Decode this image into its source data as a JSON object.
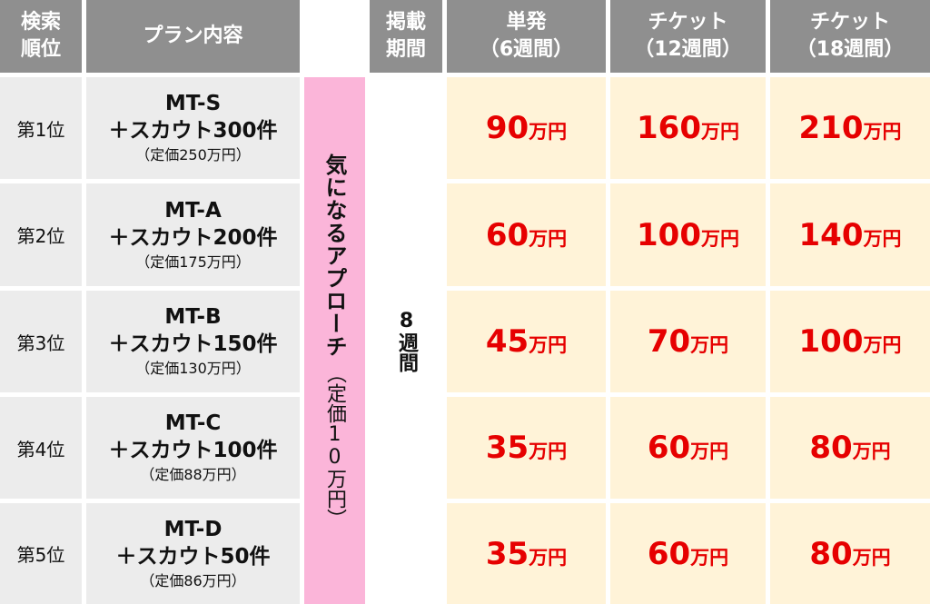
{
  "header": [
    [
      "検索",
      "順位"
    ],
    [
      "プラン内容"
    ],
    [
      "掲載",
      "期間"
    ],
    [
      "単発",
      "（6週間）"
    ],
    [
      "チケット",
      "（12週間）"
    ],
    [
      "チケット",
      "（18週間）"
    ]
  ],
  "approach": {
    "name": "気になるアプローチ",
    "price": "（定価10万円）"
  },
  "period": "8週間",
  "rows": [
    {
      "rank": "第1位",
      "plan": "MT-S",
      "scout": "＋スカウト300件",
      "list_price": "（定価250万円）",
      "prices": [
        {
          "amount": "90",
          "unit": "万円"
        },
        {
          "amount": "160",
          "unit": "万円"
        },
        {
          "amount": "210",
          "unit": "万円"
        }
      ]
    },
    {
      "rank": "第2位",
      "plan": "MT-A",
      "scout": "＋スカウト200件",
      "list_price": "（定価175万円）",
      "prices": [
        {
          "amount": "60",
          "unit": "万円"
        },
        {
          "amount": "100",
          "unit": "万円"
        },
        {
          "amount": "140",
          "unit": "万円"
        }
      ]
    },
    {
      "rank": "第3位",
      "plan": "MT-B",
      "scout": "＋スカウト150件",
      "list_price": "（定価130万円）",
      "prices": [
        {
          "amount": "45",
          "unit": "万円"
        },
        {
          "amount": "70",
          "unit": "万円"
        },
        {
          "amount": "100",
          "unit": "万円"
        }
      ]
    },
    {
      "rank": "第4位",
      "plan": "MT-C",
      "scout": "＋スカウト100件",
      "list_price": "（定価88万円）",
      "prices": [
        {
          "amount": "35",
          "unit": "万円"
        },
        {
          "amount": "60",
          "unit": "万円"
        },
        {
          "amount": "80",
          "unit": "万円"
        }
      ]
    },
    {
      "rank": "第5位",
      "plan": "MT-D",
      "scout": "＋スカウト50件",
      "list_price": "（定価86万円）",
      "prices": [
        {
          "amount": "35",
          "unit": "万円"
        },
        {
          "amount": "60",
          "unit": "万円"
        },
        {
          "amount": "80",
          "unit": "万円"
        }
      ]
    }
  ]
}
